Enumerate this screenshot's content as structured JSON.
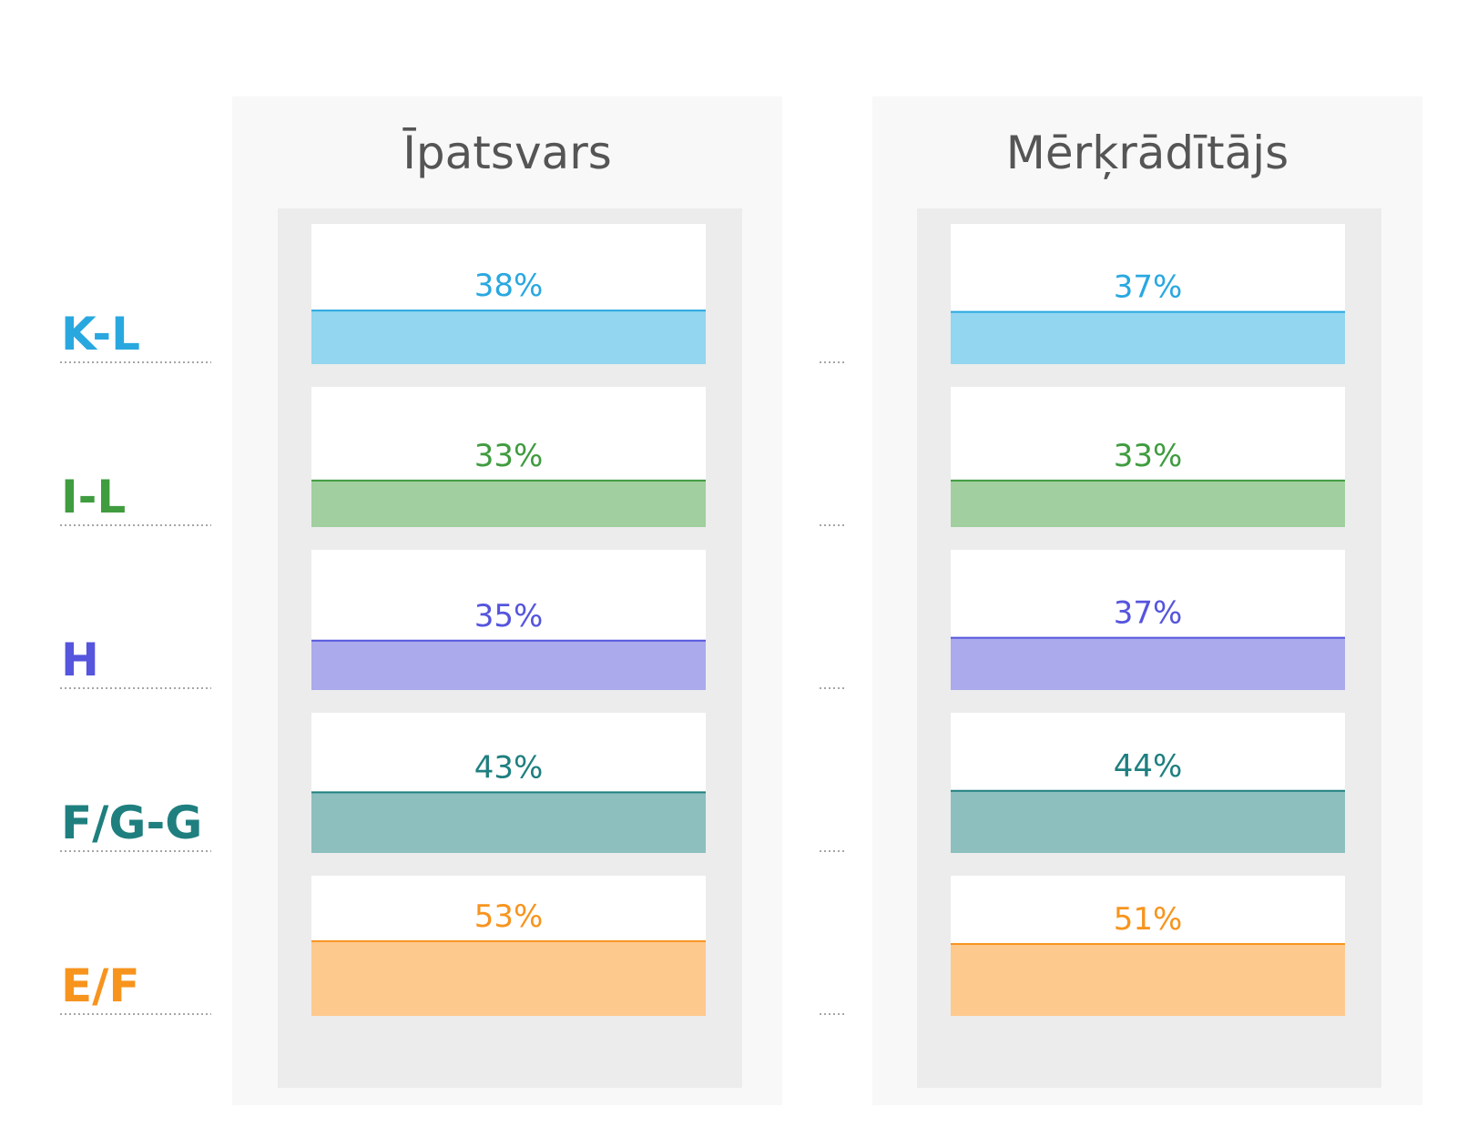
{
  "chart_data": {
    "type": "bar",
    "categories": [
      "K-L",
      "I-L",
      "H",
      "F/G-G",
      "E/F"
    ],
    "series": [
      {
        "name": "Īpatsvars",
        "values": [
          38,
          33,
          35,
          43,
          53
        ]
      },
      {
        "name": "Mērķrādītājs",
        "values": [
          37,
          33,
          37,
          44,
          51
        ]
      }
    ],
    "value_labels": [
      [
        "38%",
        "33%",
        "35%",
        "43%",
        "53%"
      ],
      [
        "37%",
        "33%",
        "37%",
        "44%",
        "51%"
      ]
    ],
    "colors": {
      "K-L": {
        "text": "#29a8e0",
        "fill": "#92d6ef",
        "line": "#29a8e0"
      },
      "I-L": {
        "text": "#3f9c3f",
        "fill": "#a1cf9f",
        "line": "#3f9c3f"
      },
      "H": {
        "text": "#5555dd",
        "fill": "#aaaaec",
        "line": "#5555dd"
      },
      "F/G-G": {
        "text": "#1f7f7f",
        "fill": "#8dbfbf",
        "line": "#1f7f7f"
      },
      "E/F": {
        "text": "#f7941e",
        "fill": "#fec98d",
        "line": "#f7941e"
      }
    },
    "orientation": "vertical-fill",
    "grid": false,
    "legend": "none"
  }
}
